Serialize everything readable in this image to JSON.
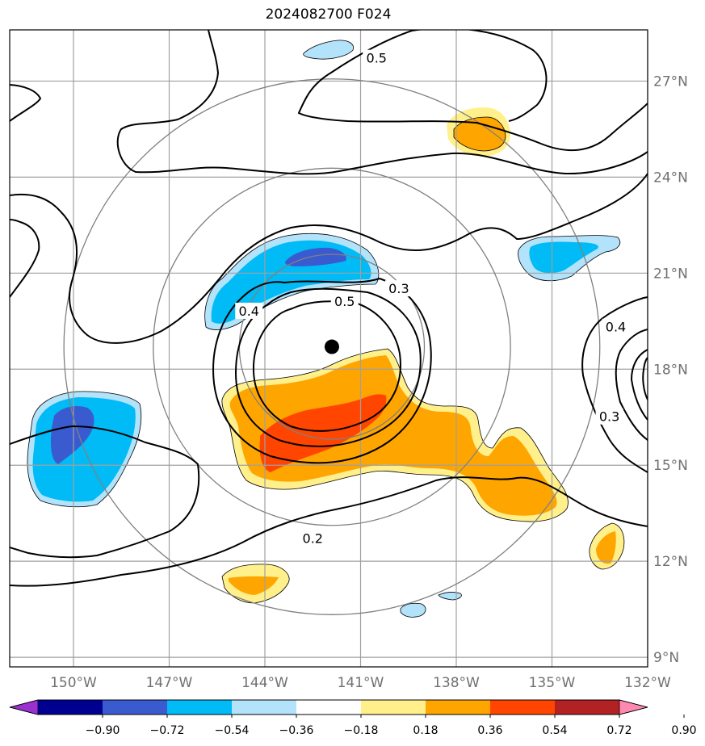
{
  "chart_data": {
    "type": "contour-map",
    "title": "2024082700 F024",
    "lon_ticks": [
      {
        "value": -150,
        "label": "150°W"
      },
      {
        "value": -147,
        "label": "147°W"
      },
      {
        "value": -144,
        "label": "144°W"
      },
      {
        "value": -141,
        "label": "141°W"
      },
      {
        "value": -138,
        "label": "138°W"
      },
      {
        "value": -135,
        "label": "135°W"
      },
      {
        "value": -132,
        "label": "132°W"
      }
    ],
    "lat_ticks": [
      {
        "value": 9,
        "label": "9°N"
      },
      {
        "value": 12,
        "label": "12°N"
      },
      {
        "value": 15,
        "label": "15°N"
      },
      {
        "value": 18,
        "label": "18°N"
      },
      {
        "value": 21,
        "label": "21°N"
      },
      {
        "value": 24,
        "label": "24°N"
      },
      {
        "value": 27,
        "label": "27°N"
      }
    ],
    "lon_range": [
      -152,
      -132
    ],
    "lat_range": [
      8.7,
      28.6
    ],
    "grid": true,
    "storm_center": {
      "lon": -141.9,
      "lat": 18.7
    },
    "range_rings_deg": [
      2.9,
      5.6,
      8.4
    ],
    "contour_labels": [
      {
        "text": "0.5",
        "lon": -140.5,
        "lat": 27.7
      },
      {
        "text": "0.3",
        "lon": -139.8,
        "lat": 20.5
      },
      {
        "text": "0.5",
        "lon": -141.5,
        "lat": 20.1
      },
      {
        "text": "0.4",
        "lon": -144.5,
        "lat": 19.8
      },
      {
        "text": "0.4",
        "lon": -133.0,
        "lat": 19.3
      },
      {
        "text": "0.3",
        "lon": -133.2,
        "lat": 16.5
      },
      {
        "text": "0.2",
        "lon": -142.5,
        "lat": 12.7
      }
    ],
    "colorbar": {
      "ticks": [
        "−0.90",
        "−0.72",
        "−0.54",
        "−0.36",
        "−0.18",
        "0.18",
        "0.36",
        "0.54",
        "0.72",
        "0.90"
      ],
      "colors": [
        "#9b30d0",
        "#000090",
        "#3a5bd0",
        "#00bbf5",
        "#b3e2fb",
        "#ffffff",
        "#fff08c",
        "#ffa500",
        "#ff4500",
        "#b22222",
        "#ff88b0"
      ]
    }
  }
}
